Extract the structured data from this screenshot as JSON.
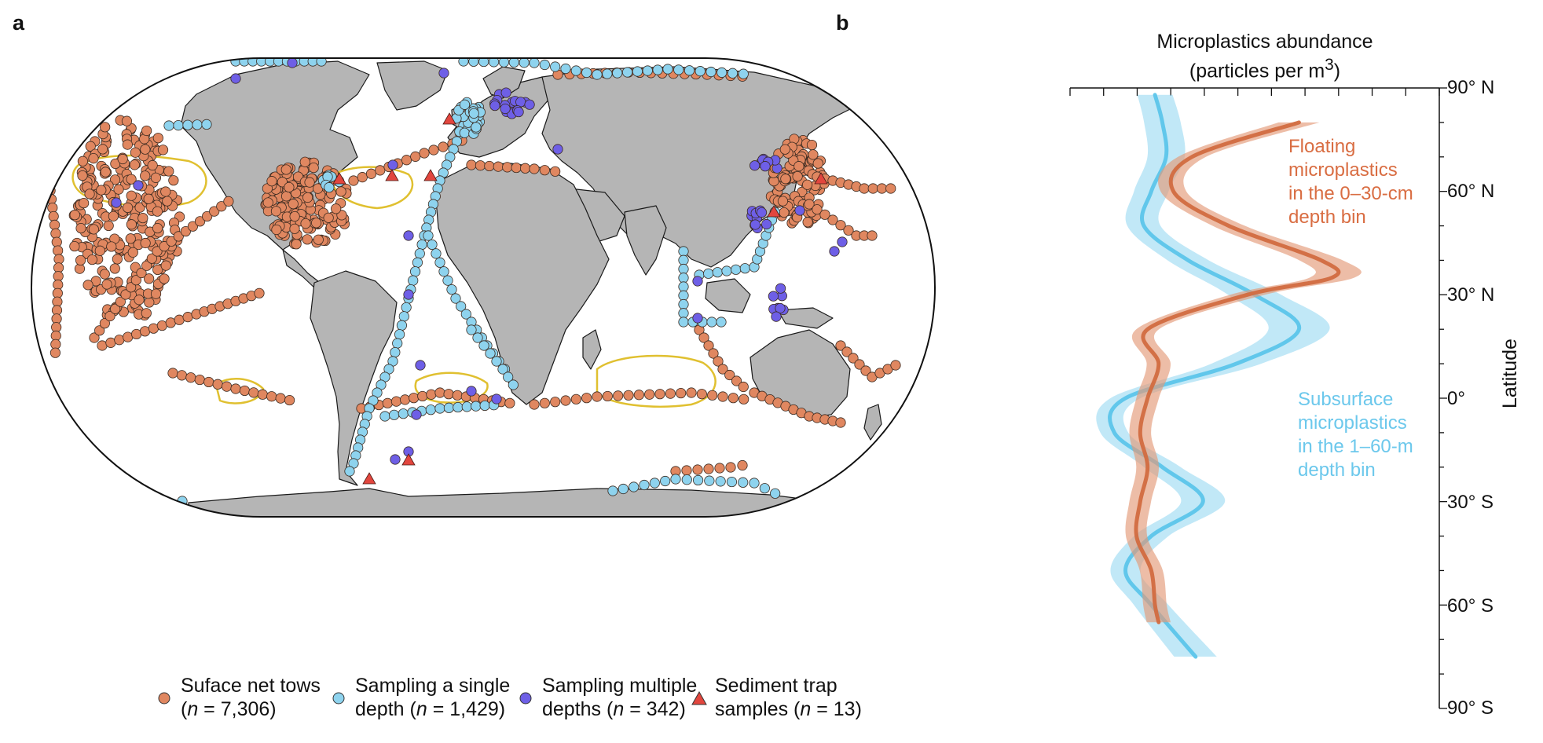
{
  "panels": {
    "a": "a",
    "b": "b"
  },
  "legend": [
    {
      "line1": "Suface net tows",
      "line2_pre": "(",
      "line2_n": "n",
      "line2_post": " = 7,306)",
      "color": "#e08760",
      "shape": "circle"
    },
    {
      "line1": "Sampling a single",
      "line2_pre": "depth (",
      "line2_n": "n",
      "line2_post": " = 1,429)",
      "color": "#8ed3ee",
      "shape": "circle"
    },
    {
      "line1": "Sampling multiple",
      "line2_pre": "depths (",
      "line2_n": "n",
      "line2_post": " = 342)",
      "color": "#6e5fe6",
      "shape": "circle"
    },
    {
      "line1": "Sediment trap",
      "line2_pre": "samples (",
      "line2_n": "n",
      "line2_post": " = 13)",
      "color": "#e2463e",
      "shape": "triangle"
    }
  ],
  "chart": {
    "title_line1": "Microplastics abundance",
    "title_line2": "(particles per m",
    "title_sup": "3",
    "title_close": ")",
    "ylabel": "Latitude",
    "lat_labels": [
      "90° N",
      "60° N",
      "30° N",
      "0°",
      "30° S",
      "60° S",
      "90° S"
    ],
    "annotation_floating": [
      "Floating",
      "microplastics",
      "in the 0–30-cm",
      "depth bin"
    ],
    "annotation_subsurface": [
      "Subsurface",
      "microplastics",
      "in the 1–60-m",
      "depth bin"
    ]
  },
  "colors": {
    "surface": "#e08760",
    "single": "#8ed3ee",
    "multiple": "#6e5fe6",
    "trap": "#e2463e",
    "land": "#b5b5b5",
    "gyre": "#e0c030",
    "floating_line": "#d26b40",
    "subsurface_line": "#5cc5ea"
  },
  "chart_data": {
    "type": "line",
    "ylabel": "Latitude",
    "ylim": [
      -90,
      90
    ],
    "yticks": [
      "90° N",
      "60° N",
      "30° N",
      "0°",
      "30° S",
      "60° S",
      "90° S"
    ],
    "series": [
      {
        "name": "Floating microplastics in the 0–30-cm depth bin",
        "lat": [
          80,
          70,
          60,
          50,
          40,
          35,
          30,
          20,
          10,
          0,
          -10,
          -20,
          -30,
          -40,
          -50,
          -60,
          -65
        ],
        "rel_abundance": [
          0.62,
          0.33,
          0.28,
          0.43,
          0.68,
          0.71,
          0.48,
          0.21,
          0.24,
          0.21,
          0.19,
          0.21,
          0.19,
          0.18,
          0.22,
          0.23,
          0.24
        ]
      },
      {
        "name": "Subsurface microplastics in the 1–60-m depth bin",
        "lat": [
          88,
          80,
          70,
          60,
          50,
          40,
          30,
          20,
          10,
          0,
          -10,
          -20,
          -30,
          -40,
          -50,
          -60,
          -75
        ],
        "rel_abundance": [
          0.23,
          0.25,
          0.26,
          0.22,
          0.2,
          0.32,
          0.5,
          0.62,
          0.45,
          0.15,
          0.12,
          0.25,
          0.36,
          0.22,
          0.15,
          0.22,
          0.34
        ]
      }
    ]
  }
}
